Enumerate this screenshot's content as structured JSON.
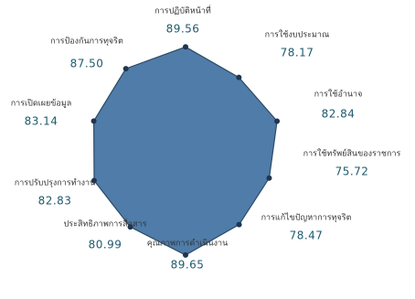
{
  "chart_data": {
    "type": "radar",
    "categories": [
      "การปฏิบัติหน้าที่",
      "การใช้งบประมาณ",
      "การใช้อำนาจ",
      "การใช้ทรัพย์สินของราชการ",
      "การแก้ไขปัญหาการทุจริต",
      "คุณภาพการดำเนินงาน",
      "ประสิทธิภาพการสื่อสาร",
      "การปรับปรุงการทำงาน",
      "การเปิดเผยข้อมูล",
      "การป้องกันการทุจริต"
    ],
    "values": [
      89.56,
      78.17,
      82.84,
      75.72,
      78.47,
      89.65,
      80.99,
      82.83,
      83.14,
      87.5
    ],
    "value_labels": [
      "89.56",
      "78.17",
      "82.84",
      "75.72",
      "78.47",
      "89.65",
      "80.99",
      "82.83",
      "83.14",
      "87.50"
    ],
    "rlim": [
      0,
      100
    ],
    "color": "#4f7ca8"
  }
}
